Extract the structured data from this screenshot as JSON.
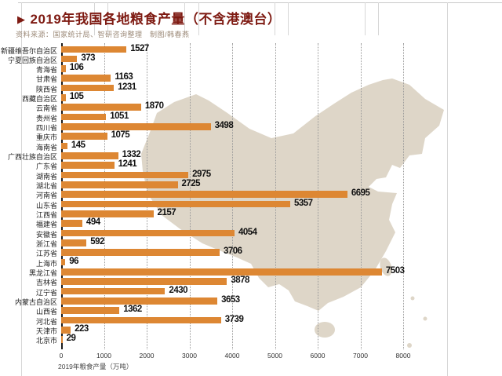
{
  "page": {
    "title_marker": "▶",
    "title": "2019年我国各地粮食产量（不含港澳台）",
    "source": "资料来源：国家统计局、智研咨询整理　制图/韩春燕"
  },
  "chart_data": {
    "type": "bar",
    "orientation": "horizontal",
    "title": "2019年我国各地粮食产量（不含港澳台）",
    "source": "资料来源：国家统计局、智研咨询整理　制图/韩春燕",
    "xlabel": "2019年粮食产量（万吨）",
    "ylabel": "",
    "xlim": [
      0,
      8000
    ],
    "x_ticks": [
      0,
      1000,
      2000,
      3000,
      4000,
      5000,
      6000,
      7000,
      8000
    ],
    "grid": "vertical-dotted",
    "legend": "none",
    "bar_color": "#dd8733",
    "map_backdrop_color": "#ded6c8",
    "title_color": "#7e1a12",
    "categories": [
      "新疆维吾尔自治区",
      "宁夏回族自治区",
      "青海省",
      "甘肃省",
      "陕西省",
      "西藏自治区",
      "云南省",
      "贵州省",
      "四川省",
      "重庆市",
      "海南省",
      "广西壮族自治区",
      "广东省",
      "湖南省",
      "湖北省",
      "河南省",
      "山东省",
      "江西省",
      "福建省",
      "安徽省",
      "浙江省",
      "江苏省",
      "上海市",
      "黑龙江省",
      "吉林省",
      "辽宁省",
      "内蒙古自治区",
      "山西省",
      "河北省",
      "天津市",
      "北京市"
    ],
    "values": [
      1527,
      373,
      106,
      1163,
      1231,
      105,
      1870,
      1051,
      3498,
      1075,
      145,
      1332,
      1241,
      2975,
      2725,
      6695,
      5357,
      2157,
      494,
      4054,
      592,
      3706,
      96,
      7503,
      3878,
      2430,
      3653,
      1362,
      3739,
      223,
      29
    ]
  }
}
